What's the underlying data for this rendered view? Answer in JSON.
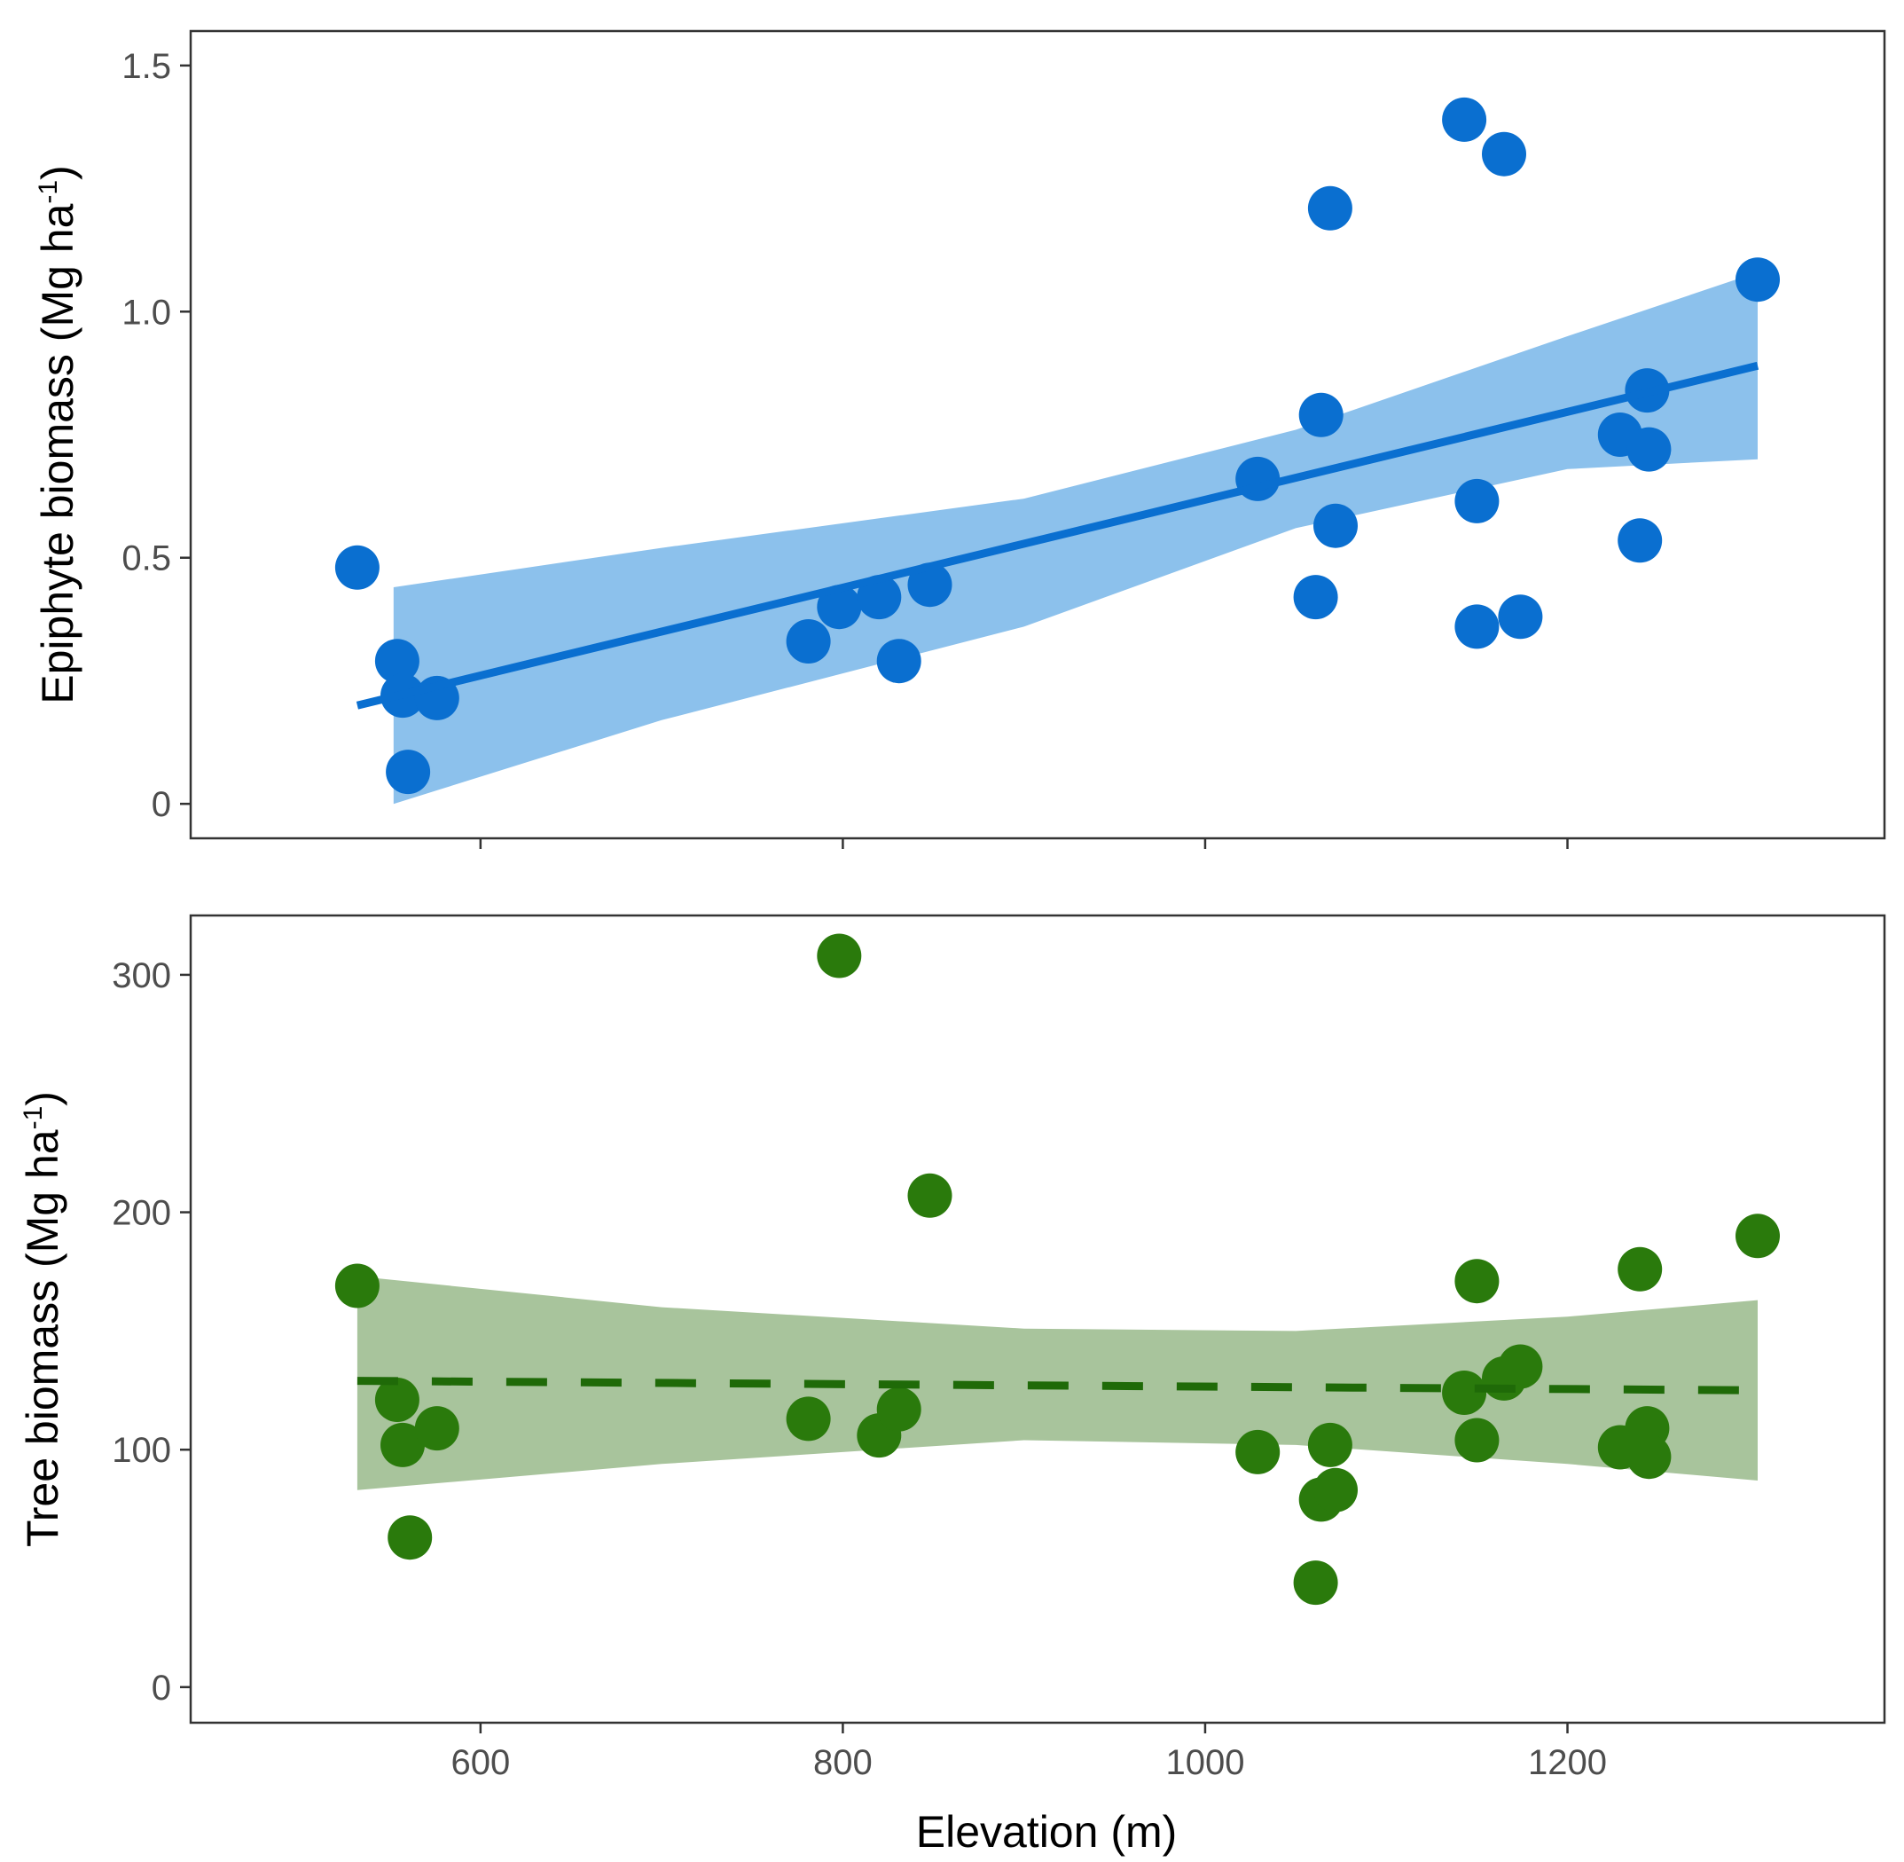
{
  "chart_data": [
    {
      "type": "scatter",
      "panel": "top",
      "title": "",
      "ylabel_prefix": "Epiphyte biomass (Mg ha",
      "ylabel_sup": "-1",
      "ylabel_suffix": ")",
      "xlabel": "",
      "xlim": [
        440,
        1375
      ],
      "ylim": [
        -0.07,
        1.57
      ],
      "x_ticks": [
        600,
        800,
        1000,
        1200
      ],
      "y_ticks": [
        0,
        0.5,
        1.0,
        1.5
      ],
      "y_tick_labels": [
        "0",
        "0.5",
        "1.0",
        "1.5"
      ],
      "x_tick_labels_visible": false,
      "color": "#0a6fd0",
      "band_color": "#8cc1ec",
      "fit_style": "solid",
      "points": [
        {
          "x": 532,
          "y": 0.48
        },
        {
          "x": 554,
          "y": 0.29
        },
        {
          "x": 557,
          "y": 0.22
        },
        {
          "x": 560,
          "y": 0.065
        },
        {
          "x": 576,
          "y": 0.215
        },
        {
          "x": 781,
          "y": 0.33
        },
        {
          "x": 798,
          "y": 0.4
        },
        {
          "x": 820,
          "y": 0.42
        },
        {
          "x": 831,
          "y": 0.29
        },
        {
          "x": 848,
          "y": 0.445
        },
        {
          "x": 1029,
          "y": 0.66
        },
        {
          "x": 1061,
          "y": 0.42
        },
        {
          "x": 1064,
          "y": 0.79
        },
        {
          "x": 1069,
          "y": 1.21
        },
        {
          "x": 1072,
          "y": 0.565
        },
        {
          "x": 1143,
          "y": 1.39
        },
        {
          "x": 1150,
          "y": 0.615
        },
        {
          "x": 1150,
          "y": 0.36
        },
        {
          "x": 1165,
          "y": 1.32
        },
        {
          "x": 1174,
          "y": 0.38
        },
        {
          "x": 1229,
          "y": 0.75
        },
        {
          "x": 1240,
          "y": 0.535
        },
        {
          "x": 1244,
          "y": 0.84
        },
        {
          "x": 1245,
          "y": 0.72
        },
        {
          "x": 1305,
          "y": 1.065
        }
      ],
      "fit": {
        "x": [
          532,
          1305
        ],
        "y": [
          0.2,
          0.89
        ]
      },
      "band": {
        "x": [
          552,
          700,
          900,
          1050,
          1200,
          1305
        ],
        "upper": [
          0.44,
          0.52,
          0.62,
          0.76,
          0.95,
          1.08
        ],
        "lower": [
          0.0,
          0.17,
          0.36,
          0.56,
          0.68,
          0.7
        ]
      }
    },
    {
      "type": "scatter",
      "panel": "bottom",
      "title": "",
      "ylabel_prefix": "Tree biomass (Mg ha",
      "ylabel_sup": "-1",
      "ylabel_suffix": ")",
      "xlabel": "Elevation (m)",
      "xlim": [
        440,
        1375
      ],
      "ylim": [
        -15,
        325
      ],
      "x_ticks": [
        600,
        800,
        1000,
        1200
      ],
      "x_tick_labels": [
        "600",
        "800",
        "1000",
        "1200"
      ],
      "y_ticks": [
        0,
        100,
        200,
        300
      ],
      "y_tick_labels": [
        "0",
        "100",
        "200",
        "300"
      ],
      "color": "#2a7a0c",
      "band_color": "#a8c49c",
      "fit_color": "#1f6a08",
      "fit_style": "dashed",
      "points": [
        {
          "x": 532,
          "y": 169
        },
        {
          "x": 554,
          "y": 121
        },
        {
          "x": 557,
          "y": 102
        },
        {
          "x": 561,
          "y": 63
        },
        {
          "x": 576,
          "y": 109
        },
        {
          "x": 781,
          "y": 113
        },
        {
          "x": 798,
          "y": 308
        },
        {
          "x": 820,
          "y": 106
        },
        {
          "x": 831,
          "y": 117
        },
        {
          "x": 848,
          "y": 207
        },
        {
          "x": 1029,
          "y": 99
        },
        {
          "x": 1061,
          "y": 44
        },
        {
          "x": 1064,
          "y": 79
        },
        {
          "x": 1069,
          "y": 102
        },
        {
          "x": 1072,
          "y": 83
        },
        {
          "x": 1143,
          "y": 124
        },
        {
          "x": 1150,
          "y": 171
        },
        {
          "x": 1150,
          "y": 104
        },
        {
          "x": 1165,
          "y": 130
        },
        {
          "x": 1174,
          "y": 135
        },
        {
          "x": 1229,
          "y": 101
        },
        {
          "x": 1240,
          "y": 176
        },
        {
          "x": 1244,
          "y": 109
        },
        {
          "x": 1245,
          "y": 97
        },
        {
          "x": 1305,
          "y": 190
        }
      ],
      "fit": {
        "x": [
          532,
          1305
        ],
        "y": [
          129,
          125
        ]
      },
      "band": {
        "x": [
          532,
          700,
          900,
          1050,
          1200,
          1305
        ],
        "upper": [
          173,
          160,
          151,
          150,
          156,
          163
        ],
        "lower": [
          83,
          94,
          104,
          102,
          94,
          87
        ]
      }
    }
  ]
}
